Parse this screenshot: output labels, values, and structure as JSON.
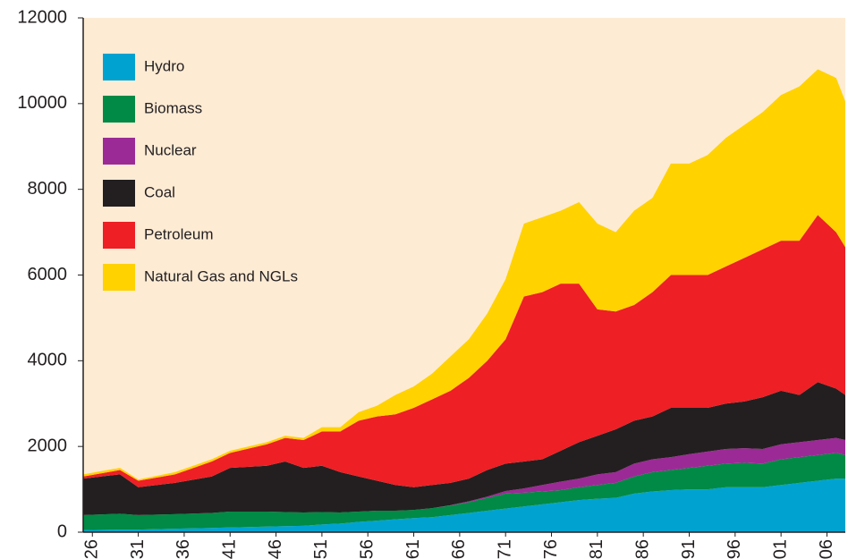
{
  "chart_data": {
    "type": "stacked_area",
    "x": [
      1925,
      1929,
      1931,
      1935,
      1939,
      1941,
      1945,
      1947,
      1949,
      1951,
      1953,
      1955,
      1957,
      1959,
      1961,
      1963,
      1965,
      1967,
      1969,
      1971,
      1973,
      1975,
      1977,
      1979,
      1981,
      1983,
      1985,
      1987,
      1989,
      1991,
      1993,
      1995,
      1997,
      1999,
      2001,
      2003,
      2005,
      2007,
      2008
    ],
    "series": [
      {
        "name": "Hydro",
        "color": "#00a3d0",
        "values": [
          50,
          60,
          60,
          80,
          100,
          110,
          130,
          140,
          150,
          180,
          200,
          240,
          270,
          300,
          330,
          350,
          400,
          450,
          500,
          550,
          600,
          650,
          700,
          750,
          780,
          800,
          900,
          950,
          980,
          1000,
          1000,
          1050,
          1050,
          1050,
          1100,
          1150,
          1200,
          1250,
          1250
        ]
      },
      {
        "name": "Biomass",
        "color": "#008a45",
        "values": [
          350,
          370,
          340,
          340,
          350,
          370,
          350,
          330,
          310,
          290,
          260,
          240,
          230,
          200,
          190,
          210,
          220,
          250,
          300,
          350,
          320,
          300,
          280,
          300,
          320,
          350,
          400,
          450,
          470,
          500,
          550,
          550,
          570,
          550,
          600,
          600,
          600,
          600,
          550
        ]
      },
      {
        "name": "Nuclear",
        "color": "#9c2a96",
        "values": [
          0,
          0,
          0,
          0,
          0,
          0,
          0,
          0,
          0,
          0,
          0,
          0,
          0,
          0,
          0,
          0,
          10,
          20,
          30,
          60,
          100,
          150,
          200,
          200,
          250,
          250,
          300,
          300,
          300,
          320,
          330,
          340,
          340,
          340,
          350,
          350,
          350,
          350,
          350
        ]
      },
      {
        "name": "Coal",
        "color": "#231f20",
        "values": [
          850,
          920,
          650,
          730,
          850,
          1020,
          1070,
          1180,
          1040,
          1080,
          940,
          820,
          700,
          600,
          530,
          540,
          520,
          530,
          620,
          640,
          630,
          600,
          720,
          850,
          900,
          1000,
          1000,
          1000,
          1150,
          1080,
          1020,
          1060,
          1090,
          1210,
          1250,
          1100,
          1350,
          1150,
          1050
        ]
      },
      {
        "name": "Petroleum",
        "color": "#ee1f25",
        "values": [
          50,
          100,
          150,
          200,
          350,
          350,
          500,
          550,
          650,
          800,
          950,
          1300,
          1500,
          1650,
          1850,
          2000,
          2150,
          2350,
          2550,
          2900,
          3850,
          3900,
          3900,
          3700,
          2950,
          2750,
          2700,
          2900,
          3100,
          3100,
          3100,
          3200,
          3350,
          3450,
          3500,
          3600,
          3900,
          3650,
          3450
        ]
      },
      {
        "name": "Natural Gas and NGLs",
        "color": "#ffd200",
        "values": [
          50,
          50,
          30,
          50,
          50,
          50,
          50,
          50,
          50,
          100,
          100,
          200,
          250,
          450,
          500,
          600,
          800,
          900,
          1100,
          1400,
          1700,
          1750,
          1700,
          1900,
          2000,
          1850,
          2200,
          2200,
          2600,
          2600,
          2800,
          3000,
          3100,
          3200,
          3400,
          3600,
          3400,
          3600,
          3400
        ]
      }
    ],
    "xlim": [
      1925,
      2008
    ],
    "xticks": [
      1926,
      1931,
      1936,
      1941,
      1946,
      1951,
      1956,
      1961,
      1966,
      1971,
      1976,
      1981,
      1986,
      1991,
      1996,
      2001,
      2006
    ],
    "ylim": [
      0,
      12000
    ],
    "yticks": [
      0,
      2000,
      4000,
      6000,
      8000,
      10000,
      12000
    ],
    "background": "#fdebd4",
    "legend": "upper left"
  }
}
